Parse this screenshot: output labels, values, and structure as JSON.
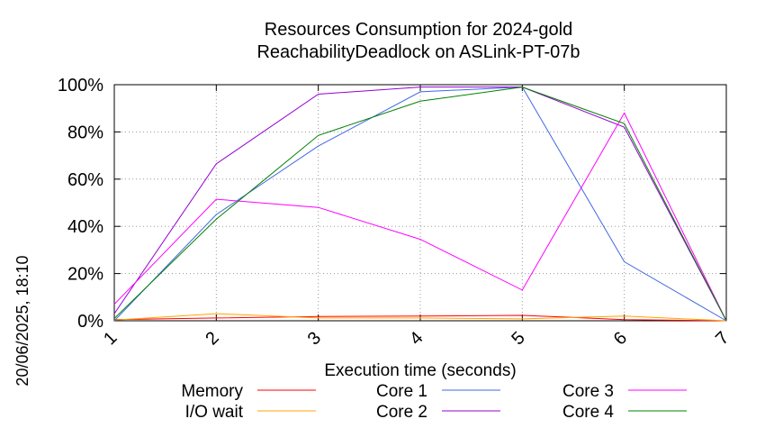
{
  "chart_data": {
    "type": "line",
    "title": "Resources Consumption for 2024-gold",
    "subtitle": "ReachabilityDeadlock on ASLink-PT-07b",
    "xlabel": "Execution time (seconds)",
    "ylabel": "",
    "side_label": "20/06/2025, 18:10",
    "x": [
      1,
      2,
      3,
      4,
      5,
      6,
      7
    ],
    "x_ticks": [
      "1",
      "2",
      "3",
      "4",
      "5",
      "6",
      "7"
    ],
    "xlim": [
      1,
      7
    ],
    "y_ticks": [
      "0%",
      "20%",
      "40%",
      "60%",
      "80%",
      "100%"
    ],
    "ylim": [
      0,
      100
    ],
    "grid": true,
    "legend_position": "bottom",
    "series": [
      {
        "name": "Memory",
        "color": "#ff0000",
        "values": [
          0.5,
          1.2,
          1.8,
          2.0,
          2.3,
          0.5,
          0.0
        ]
      },
      {
        "name": "I/O wait",
        "color": "#ffa500",
        "values": [
          0.3,
          3.0,
          1.2,
          1.2,
          0.8,
          2.0,
          0.0
        ]
      },
      {
        "name": "Core 1",
        "color": "#4169e1",
        "values": [
          0.0,
          45.0,
          74.0,
          97.0,
          99.0,
          25.0,
          0.0
        ]
      },
      {
        "name": "Core 2",
        "color": "#9400d3",
        "values": [
          3.0,
          66.5,
          96.0,
          99.0,
          99.0,
          82.0,
          0.0
        ]
      },
      {
        "name": "Core 3",
        "color": "#ff00ff",
        "values": [
          7.0,
          51.5,
          48.0,
          34.5,
          13.0,
          88.0,
          0.0
        ]
      },
      {
        "name": "Core 4",
        "color": "#008000",
        "values": [
          1.0,
          43.0,
          78.5,
          93.0,
          99.0,
          83.5,
          0.0
        ]
      }
    ]
  }
}
